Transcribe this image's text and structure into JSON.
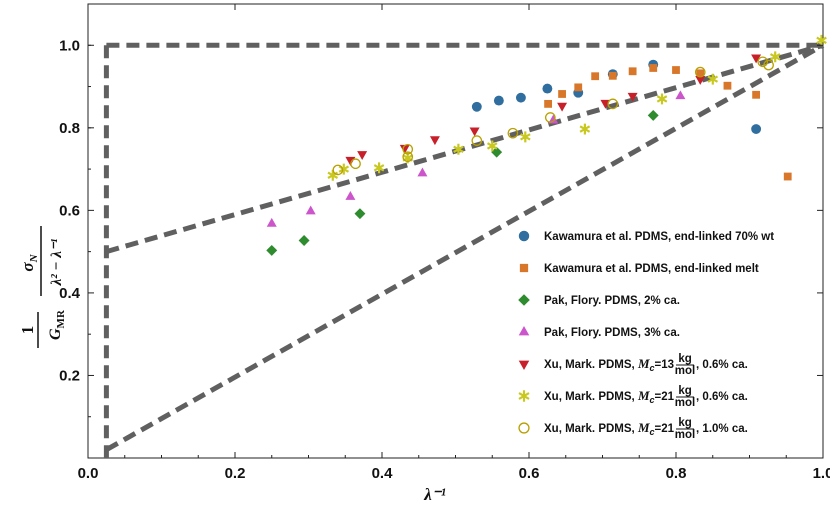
{
  "chart_data": {
    "type": "scatter",
    "title": "",
    "xlabel": "λ⁻¹",
    "ylabel": "σN / (GMR (λ² − λ⁻¹))",
    "ylabel_parts": {
      "one": "1",
      "gmr": "G",
      "gmr_sub": "MR",
      "sigma": "σ",
      "sigma_sub": "N",
      "denominator": "λ² − λ⁻¹"
    },
    "xlim": [
      0.0,
      1.0
    ],
    "ylim": [
      0.0,
      1.1
    ],
    "xticks": [
      "0.0",
      "0.2",
      "0.4",
      "0.6",
      "0.8",
      "1.0"
    ],
    "yticks": [
      "0.2",
      "0.4",
      "0.6",
      "0.8",
      "1.0"
    ],
    "xtick_values": [
      0.0,
      0.2,
      0.4,
      0.6,
      0.8,
      1.0
    ],
    "ytick_values": [
      0.2,
      0.4,
      0.6,
      0.8,
      1.0
    ],
    "grid": false,
    "legend_position": "right",
    "reference_lines": [
      {
        "name": "bound-horizontal-top",
        "points": [
          [
            0.025,
            1.0
          ],
          [
            1.0,
            1.0
          ]
        ]
      },
      {
        "name": "bound-vertical-left",
        "points": [
          [
            0.025,
            1.0
          ],
          [
            0.025,
            0.0
          ]
        ]
      },
      {
        "name": "line-half-to-one",
        "points": [
          [
            0.025,
            0.5
          ],
          [
            1.0,
            1.0
          ]
        ]
      },
      {
        "name": "line-zero-to-one",
        "points": [
          [
            0.025,
            0.02
          ],
          [
            1.0,
            1.0
          ]
        ]
      }
    ],
    "series": [
      {
        "name": "Kawamura et al. PDMS, end-linked 70% wt",
        "marker": "circle",
        "color": "#2f6e9e",
        "points": [
          [
            0.529,
            0.851
          ],
          [
            0.559,
            0.866
          ],
          [
            0.589,
            0.873
          ],
          [
            0.625,
            0.895
          ],
          [
            0.667,
            0.885
          ],
          [
            0.714,
            0.93
          ],
          [
            0.769,
            0.953
          ],
          [
            0.909,
            0.797
          ]
        ]
      },
      {
        "name": "Kawamura et al. PDMS, end-linked melt",
        "marker": "square",
        "color": "#d8762a",
        "points": [
          [
            0.626,
            0.858
          ],
          [
            0.645,
            0.882
          ],
          [
            0.667,
            0.898
          ],
          [
            0.69,
            0.925
          ],
          [
            0.714,
            0.926
          ],
          [
            0.741,
            0.937
          ],
          [
            0.769,
            0.945
          ],
          [
            0.8,
            0.94
          ],
          [
            0.833,
            0.932
          ],
          [
            0.87,
            0.902
          ],
          [
            0.909,
            0.88
          ],
          [
            0.952,
            0.682
          ]
        ]
      },
      {
        "name": "Pak, Flory. PDMS, 2% ca.",
        "marker": "diamond",
        "color": "#2e8b2e",
        "points": [
          [
            0.25,
            0.503
          ],
          [
            0.294,
            0.527
          ],
          [
            0.37,
            0.592
          ],
          [
            0.556,
            0.741
          ],
          [
            0.769,
            0.83
          ]
        ]
      },
      {
        "name": "Pak, Flory. PDMS, 3% ca.",
        "marker": "triangle-up",
        "color": "#cc55cc",
        "points": [
          [
            0.25,
            0.568
          ],
          [
            0.303,
            0.598
          ],
          [
            0.357,
            0.633
          ],
          [
            0.455,
            0.69
          ],
          [
            0.633,
            0.818
          ],
          [
            0.806,
            0.877
          ]
        ]
      },
      {
        "name": "Xu, Mark. PDMS, Mc=13 kg/mol, 0.6% ca.",
        "marker": "triangle-down",
        "color": "#c8202a",
        "points": [
          [
            0.357,
            0.722
          ],
          [
            0.373,
            0.736
          ],
          [
            0.431,
            0.751
          ],
          [
            0.472,
            0.772
          ],
          [
            0.526,
            0.793
          ],
          [
            0.645,
            0.853
          ],
          [
            0.704,
            0.86
          ],
          [
            0.741,
            0.877
          ],
          [
            0.833,
            0.918
          ],
          [
            0.909,
            0.97
          ]
        ]
      },
      {
        "name": "Xu, Mark. PDMS, Mc=21 kg/mol, 0.6% ca.",
        "marker": "star",
        "color": "#c8c820",
        "points": [
          [
            0.333,
            0.685
          ],
          [
            0.348,
            0.7
          ],
          [
            0.396,
            0.703
          ],
          [
            0.435,
            0.727
          ],
          [
            0.504,
            0.748
          ],
          [
            0.55,
            0.756
          ],
          [
            0.595,
            0.778
          ],
          [
            0.676,
            0.797
          ],
          [
            0.781,
            0.87
          ],
          [
            0.85,
            0.918
          ],
          [
            0.935,
            0.972
          ],
          [
            0.998,
            1.012
          ]
        ]
      },
      {
        "name": "Xu, Mark. PDMS, Mc=21 kg/mol, 1.0% ca.",
        "marker": "circle-open",
        "color": "#b8a000",
        "points": [
          [
            0.34,
            0.698
          ],
          [
            0.364,
            0.713
          ],
          [
            0.435,
            0.748
          ],
          [
            0.435,
            0.73
          ],
          [
            0.529,
            0.769
          ],
          [
            0.578,
            0.787
          ],
          [
            0.629,
            0.825
          ],
          [
            0.714,
            0.858
          ],
          [
            0.833,
            0.935
          ],
          [
            0.918,
            0.96
          ],
          [
            0.926,
            0.952
          ]
        ]
      }
    ],
    "legend": [
      {
        "marker": "circle",
        "color": "#2f6e9e",
        "parts": [
          "Kawamura et al. PDMS, end-linked 70% wt"
        ]
      },
      {
        "marker": "square",
        "color": "#d8762a",
        "parts": [
          "Kawamura et al. PDMS, end-linked melt"
        ]
      },
      {
        "marker": "diamond",
        "color": "#2e8b2e",
        "parts": [
          "Pak, Flory. PDMS, 2% ca."
        ]
      },
      {
        "marker": "triangle-up",
        "color": "#cc55cc",
        "parts": [
          "Pak, Flory. PDMS, 3% ca."
        ]
      },
      {
        "marker": "triangle-down",
        "color": "#c8202a",
        "parts": [
          "Xu, Mark. PDMS, ",
          "M",
          "c",
          "=13",
          "kg",
          "mol",
          ", 0.6% ca."
        ]
      },
      {
        "marker": "star",
        "color": "#c8c820",
        "parts": [
          "Xu, Mark. PDMS, ",
          "M",
          "c",
          "=21",
          "kg",
          "mol",
          ", 0.6% ca."
        ]
      },
      {
        "marker": "circle-open",
        "color": "#b8a000",
        "parts": [
          "Xu, Mark. PDMS, ",
          "M",
          "c",
          "=21",
          "kg",
          "mol",
          ", 1.0% ca."
        ]
      }
    ]
  }
}
